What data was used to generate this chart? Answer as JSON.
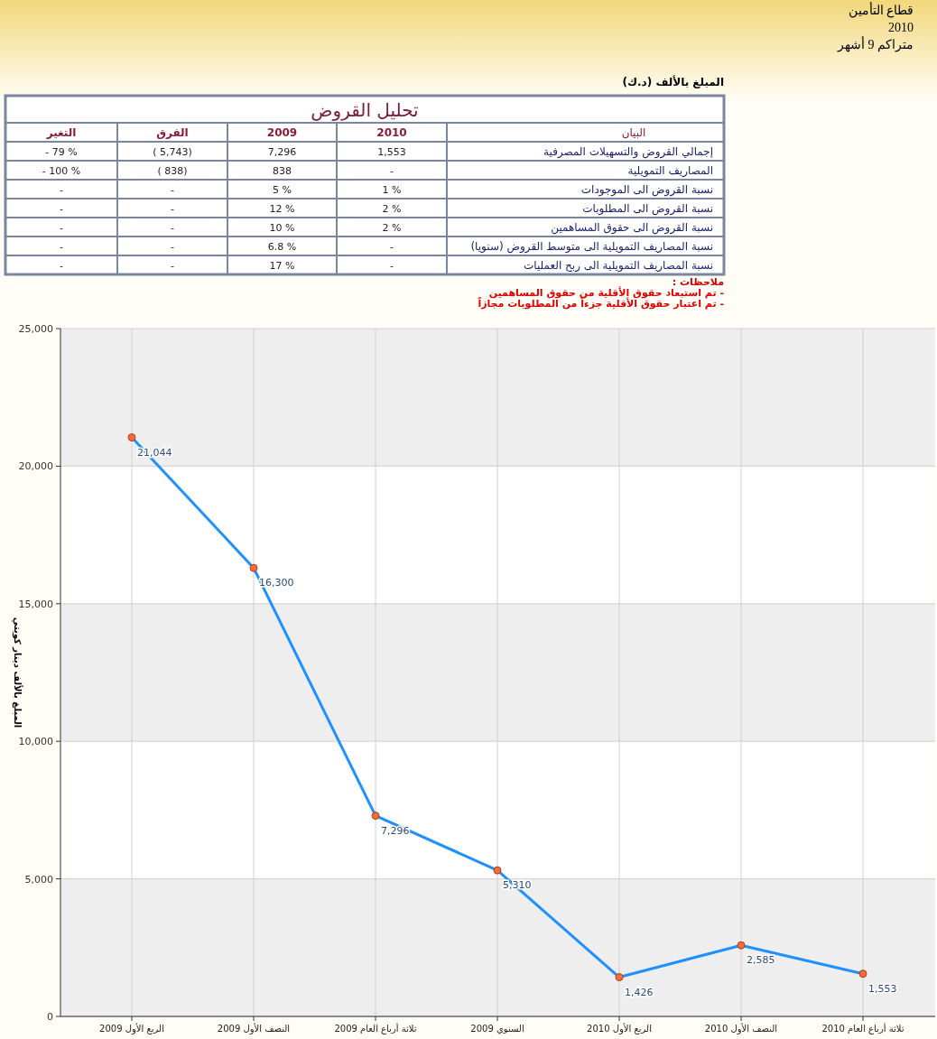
{
  "chart_data": [
    {
      "type": "other",
      "title": "تحليل القروض",
      "ylabel": "البيان",
      "annotations": [
        "قطاع التأمين",
        "2010",
        "متراكم 9 أشهر",
        "المبلغ بالألف (د.ك)",
        "ملاحظات :",
        "- تم استبعاد حقوق الأقلية من حقوق المساهمين",
        "- تم اعتبار حقوق الأقلية جزءاً من المطلوبات مجازاً"
      ],
      "categories": [
        "التغير",
        "الفرق",
        "2009",
        "2010"
      ],
      "y_categories": [
        "إجمالي القروض والتسهيلات المصرفية",
        "المصاريف التمويلية",
        "نسبة القروض الى الموجودات",
        "نسبة القروض الى المطلوبات",
        "نسبة القروض الى حقوق المساهمين",
        "نسبة المصاريف التمويلية الى متوسط القروض (سنويا)",
        "نسبة المصاريف التمويلية الى ربح العمليات"
      ],
      "cell_labels": [
        [
          "- 79 %",
          "( 5,743)",
          "7,296",
          "1,553"
        ],
        [
          "- 100 %",
          "( 838)",
          "838",
          "-"
        ],
        [
          "-",
          "-",
          "5 %",
          "1 %"
        ],
        [
          "-",
          "-",
          "12 %",
          "2 %"
        ],
        [
          "-",
          "-",
          "10 %",
          "2 %"
        ],
        [
          "-",
          "-",
          "6.8 %",
          "-"
        ],
        [
          "-",
          "-",
          "17 %",
          "-"
        ]
      ]
    },
    {
      "type": "line",
      "ylabel": "المبلغ بالألف دينار كويتي",
      "categories": [
        "الربع الأول 2009",
        "النصف الأول 2009",
        "ثلاثة أرباع العام 2009",
        "السنوي 2009",
        "الربع الأول 2010",
        "النصف الأول 2010",
        "ثلاثة أرباع العام 2010"
      ],
      "series": [
        {
          "color": "#1e90ff",
          "values": [
            21044,
            16300,
            7296,
            5310,
            1426,
            2585,
            1553
          ],
          "value_labels": [
            "21,044",
            "16,300",
            "7,296",
            "5,310",
            "1,426",
            "2,585",
            "1,553"
          ]
        }
      ],
      "ylim": [
        0,
        25000
      ],
      "yticks": [
        {
          "value": 0,
          "label": "0"
        },
        {
          "value": 5000,
          "label": "5,000"
        },
        {
          "value": 10000,
          "label": "10,000"
        },
        {
          "value": 15000,
          "label": "15,000"
        },
        {
          "value": 20000,
          "label": "20,000"
        },
        {
          "value": 25000,
          "label": "25,000"
        }
      ],
      "grid": true,
      "marker": "circle"
    }
  ]
}
